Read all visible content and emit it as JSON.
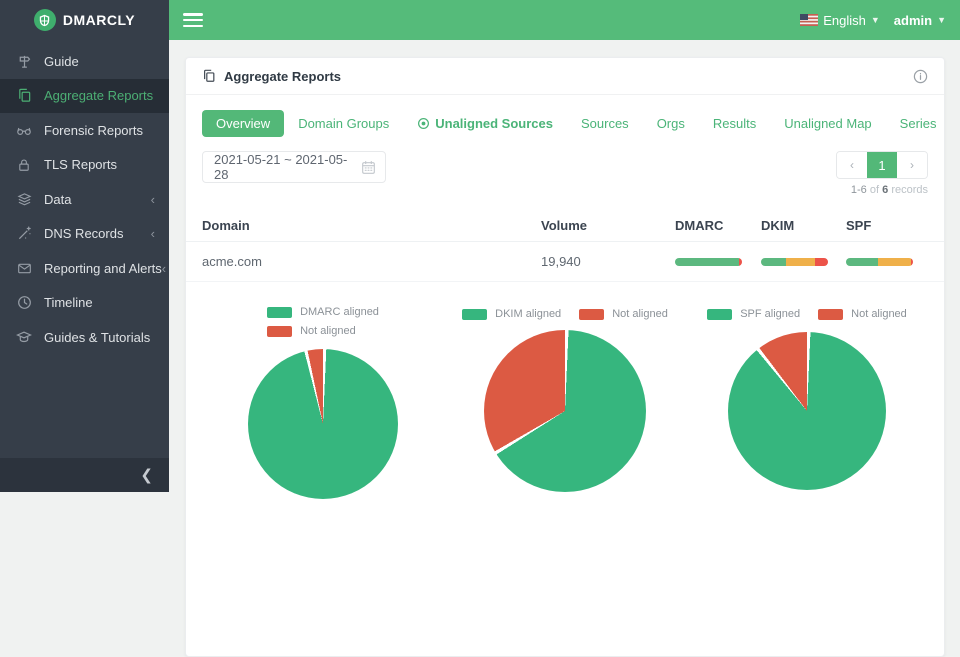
{
  "colors": {
    "accent_green": "#53b878",
    "bar_green": "#5cb87f",
    "bar_yellow": "#efb04a",
    "bar_red": "#ec5349",
    "pie_green": "#36b67e",
    "pie_red": "#dc5a43"
  },
  "topbar": {
    "language": "English",
    "user": "admin"
  },
  "sidebar": {
    "brand": "DMARCLY",
    "items": [
      {
        "label": "Guide",
        "icon": "signpost",
        "active": false,
        "collapsible": false
      },
      {
        "label": "Aggregate Reports",
        "icon": "copy",
        "active": true,
        "collapsible": false
      },
      {
        "label": "Forensic Reports",
        "icon": "glasses",
        "active": false,
        "collapsible": false
      },
      {
        "label": "TLS Reports",
        "icon": "lock",
        "active": false,
        "collapsible": false
      },
      {
        "label": "Data",
        "icon": "layers",
        "active": false,
        "collapsible": true
      },
      {
        "label": "DNS Records",
        "icon": "wand",
        "active": false,
        "collapsible": true
      },
      {
        "label": "Reporting and Alerts",
        "icon": "mail",
        "active": false,
        "collapsible": true
      },
      {
        "label": "Timeline",
        "icon": "clock",
        "active": false,
        "collapsible": false
      },
      {
        "label": "Guides & Tutorials",
        "icon": "graduation-cap",
        "active": false,
        "collapsible": false
      }
    ]
  },
  "card": {
    "title": "Aggregate Reports",
    "tabs": [
      {
        "label": "Overview",
        "active": true,
        "bold": false,
        "icon": null
      },
      {
        "label": "Domain Groups",
        "active": false,
        "bold": false,
        "icon": null
      },
      {
        "label": "Unaligned Sources",
        "active": false,
        "bold": true,
        "icon": "target"
      },
      {
        "label": "Sources",
        "active": false,
        "bold": false,
        "icon": null
      },
      {
        "label": "Orgs",
        "active": false,
        "bold": false,
        "icon": null
      },
      {
        "label": "Results",
        "active": false,
        "bold": false,
        "icon": null
      },
      {
        "label": "Unaligned Map",
        "active": false,
        "bold": false,
        "icon": null
      },
      {
        "label": "Series",
        "active": false,
        "bold": false,
        "icon": null
      }
    ],
    "date_range": "2021-05-21 ~ 2021-05-28",
    "pagination": {
      "prev": "‹",
      "page": "1",
      "next": "›",
      "range": "1-6",
      "of": "of",
      "total": "6",
      "unit": "records"
    },
    "table": {
      "headers": [
        "Domain",
        "Volume",
        "DMARC",
        "DKIM",
        "SPF"
      ],
      "rows": [
        {
          "domain": "acme.com",
          "volume": "19,940",
          "bars": {
            "dmarc": [
              {
                "color": "bar_green",
                "pct": 95
              },
              {
                "color": "bar_red",
                "pct": 5
              }
            ],
            "dkim": [
              {
                "color": "bar_green",
                "pct": 38
              },
              {
                "color": "bar_yellow",
                "pct": 42
              },
              {
                "color": "bar_red",
                "pct": 20
              }
            ],
            "spf": [
              {
                "color": "bar_green",
                "pct": 48
              },
              {
                "color": "bar_yellow",
                "pct": 49
              },
              {
                "color": "bar_red",
                "pct": 3
              }
            ]
          }
        }
      ]
    }
  },
  "chart_data": [
    {
      "type": "pie",
      "name": "dmarc-alignment",
      "legend_layout": "stacked",
      "series": [
        {
          "name": "DMARC aligned",
          "value": 96,
          "color": "pie_green"
        },
        {
          "name": "Not aligned",
          "value": 4,
          "color": "pie_red"
        }
      ]
    },
    {
      "type": "pie",
      "name": "dkim-alignment",
      "legend_layout": "inline",
      "series": [
        {
          "name": "DKIM aligned",
          "value": 66,
          "color": "pie_green"
        },
        {
          "name": "Not aligned",
          "value": 34,
          "color": "pie_red"
        }
      ]
    },
    {
      "type": "pie",
      "name": "spf-alignment",
      "legend_layout": "inline",
      "series": [
        {
          "name": "SPF aligned",
          "value": 89,
          "color": "pie_green"
        },
        {
          "name": "Not aligned",
          "value": 11,
          "color": "pie_red"
        }
      ]
    }
  ]
}
